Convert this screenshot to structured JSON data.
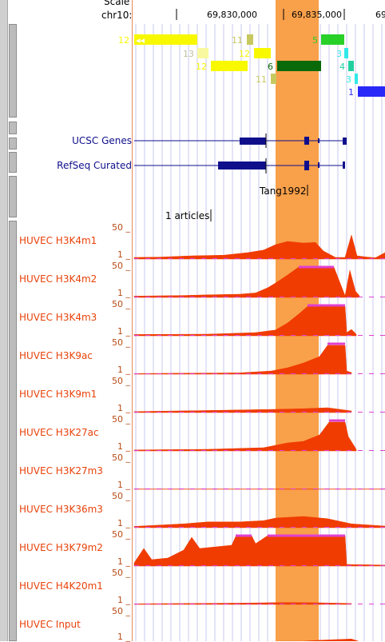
{
  "ruler": {
    "scale_label": "Scale",
    "chrom_label": "chr10:",
    "positions": [
      "69,830,000",
      "69,835,000",
      "69"
    ]
  },
  "highlight_color": "#f9a04a",
  "signal_color": "#f03c00",
  "peak_color": "#e040d0",
  "exon_tiles": [
    {
      "label": "12",
      "color": "#f8f800"
    },
    {
      "label": "11",
      "color": "#c8c860"
    },
    {
      "label": "5",
      "color": "#28d028"
    },
    {
      "label": "13",
      "color": "#f8f8a0"
    },
    {
      "label": "12",
      "color": "#f8f800"
    },
    {
      "label": "3",
      "color": "#30e8e8"
    },
    {
      "label": "12",
      "color": "#f8f800"
    },
    {
      "label": "6",
      "color": "#0a6a0a"
    },
    {
      "label": "4",
      "color": "#20d0a0"
    },
    {
      "label": "11",
      "color": "#c8c860"
    },
    {
      "label": "3",
      "color": "#30e8e8"
    },
    {
      "label": "1",
      "color": "#2828f8"
    }
  ],
  "gene_tracks": [
    {
      "name": "UCSC Genes"
    },
    {
      "name": "RefSeq Curated"
    }
  ],
  "publication": {
    "label": "Tang1992"
  },
  "articles": {
    "label": "1 articles"
  },
  "histone_tracks": [
    {
      "name": "HUVEC H3K4m1",
      "max": "50 _",
      "min": "1 _"
    },
    {
      "name": "HUVEC H3K4m2",
      "max": "50 _",
      "min": "1 _"
    },
    {
      "name": "HUVEC H3K4m3",
      "max": "50 _",
      "min": "1 _"
    },
    {
      "name": "HUVEC H3K9ac",
      "max": "50 _",
      "min": "1 _"
    },
    {
      "name": "HUVEC H3K9m1",
      "max": "50 _",
      "min": "1 _"
    },
    {
      "name": "HUVEC H3K27ac",
      "max": "50 _",
      "min": "1 _"
    },
    {
      "name": "HUVEC H3K27m3",
      "max": "50 _",
      "min": "1 _"
    },
    {
      "name": "HUVEC H3K36m3",
      "max": "50 _",
      "min": "1 _"
    },
    {
      "name": "HUVEC H3K79m2",
      "max": "50 _",
      "min": "1 _"
    },
    {
      "name": "HUVEC H4K20m1",
      "max": "50 _",
      "min": "1 _"
    },
    {
      "name": "HUVEC Input",
      "max": "50 _",
      "min": "1 _"
    }
  ]
}
